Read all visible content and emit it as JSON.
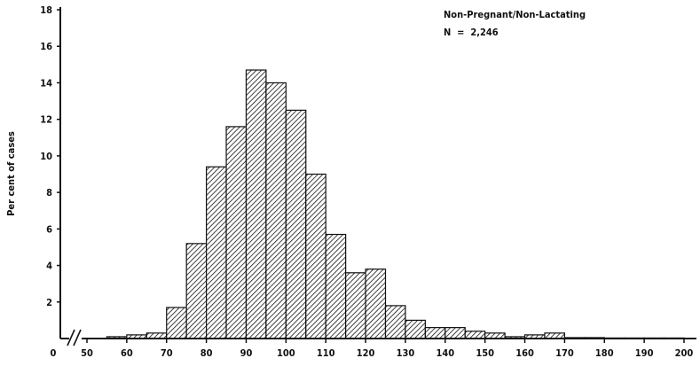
{
  "chart_data": {
    "type": "bar",
    "title": "",
    "xlabel": "",
    "ylabel": "Per cent of cases",
    "annotation": {
      "line1": "Non-Pregnant/Non-Lactating",
      "line2": "N  =  2,246"
    },
    "x_break_label": "0",
    "bin_width": 5,
    "bins_start": [
      55,
      60,
      65,
      70,
      75,
      80,
      85,
      90,
      95,
      100,
      105,
      110,
      115,
      120,
      125,
      130,
      135,
      140,
      145,
      150,
      155,
      160,
      165,
      170,
      175,
      180,
      185,
      190,
      195
    ],
    "values": [
      0.1,
      0.2,
      0.3,
      1.7,
      5.2,
      9.4,
      11.6,
      14.7,
      14.0,
      12.5,
      9.0,
      5.7,
      3.6,
      3.8,
      1.8,
      1.0,
      0.6,
      0.6,
      0.4,
      0.3,
      0.1,
      0.2,
      0.3,
      0.05,
      0.05,
      0.03,
      0.03,
      0.03,
      0.03
    ],
    "xlim": [
      50,
      200
    ],
    "ylim": [
      0,
      18
    ],
    "x_ticks": [
      50,
      60,
      70,
      80,
      90,
      100,
      110,
      120,
      130,
      140,
      150,
      160,
      170,
      180,
      190,
      200
    ],
    "x_tick_labels": [
      "50",
      "60",
      "70",
      "80",
      "90",
      "100",
      "110",
      "120",
      "130",
      "140",
      "150",
      "160",
      "170",
      "180",
      "190",
      "200"
    ],
    "y_ticks": [
      2,
      4,
      6,
      8,
      10,
      12,
      14,
      16,
      18
    ],
    "y_tick_labels": [
      "2",
      "4",
      "6",
      "8",
      "10",
      "12",
      "14",
      "16",
      "18"
    ],
    "grid": false,
    "bar_fill": "diagonal-hatch"
  }
}
